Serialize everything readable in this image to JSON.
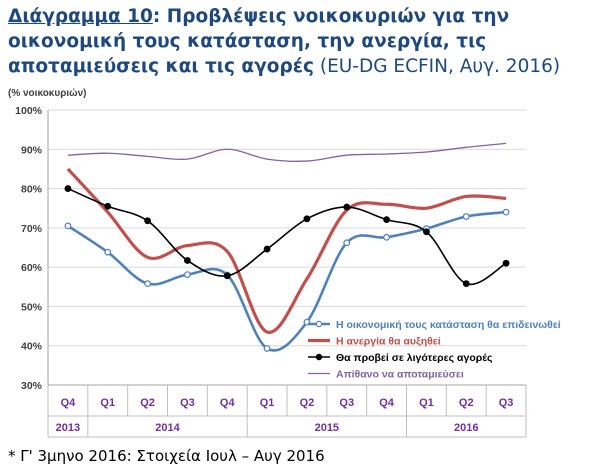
{
  "header": {
    "title_label": "Διάγραμμα 10",
    "title_text": ": Προβλέψεις νοικοκυριών για την οικονομική τους κατάσταση, την ανεργία, τις αποταμιεύσεις και τις αγορές",
    "title_source": " (EU-DG ECFIN, Αυγ. 2016)"
  },
  "footnote": "* Γ' 3μηνο 2016: Στοιχεία Ιουλ – Αυγ 2016",
  "chart_data": {
    "type": "line",
    "ylabel": "(% νοικοκυριών)",
    "ylim": [
      30,
      100
    ],
    "yticks": [
      30,
      40,
      50,
      60,
      70,
      80,
      90,
      100
    ],
    "ytick_labels": [
      "30%",
      "40%",
      "50%",
      "60%",
      "70%",
      "80%",
      "90%",
      "100%"
    ],
    "categories": [
      "Q4",
      "Q1",
      "Q2",
      "Q3",
      "Q4",
      "Q1",
      "Q2",
      "Q3",
      "Q4",
      "Q1",
      "Q2",
      "Q3"
    ],
    "groups": [
      {
        "label": "2013",
        "span": 1
      },
      {
        "label": "2014",
        "span": 4
      },
      {
        "label": "2015",
        "span": 4
      },
      {
        "label": "2016",
        "span": 3
      }
    ],
    "grid": true,
    "legend_position": "bottom-right",
    "series": [
      {
        "name": "Η οικονομική τους κατάσταση θα επιδεινωθεί",
        "color": "#4f81bd",
        "marker": "open-circle",
        "values": [
          70.5,
          63.8,
          55.8,
          58.1,
          58.0,
          39.3,
          46.0,
          66.2,
          67.6,
          69.8,
          72.9,
          74.0
        ]
      },
      {
        "name": "Η ανεργία θα αυξηθεί",
        "color": "#c0504d",
        "marker": "none",
        "values": [
          85.0,
          74.0,
          62.5,
          65.5,
          64.0,
          43.5,
          57.0,
          74.5,
          76.0,
          75.0,
          78.0,
          77.5
        ]
      },
      {
        "name": "Θα προβεί σε λιγότερες αγορές",
        "color": "#000000",
        "marker": "filled-circle",
        "values": [
          80.0,
          75.5,
          71.8,
          61.7,
          57.8,
          64.6,
          72.3,
          75.3,
          72.1,
          69.0,
          55.8,
          61.0
        ]
      },
      {
        "name": "Απίθανο να αποταμιεύσει",
        "color": "#8064a2",
        "marker": "none",
        "values": [
          88.5,
          89.0,
          88.2,
          87.5,
          90.0,
          87.5,
          87.0,
          88.5,
          88.8,
          89.3,
          90.5,
          91.5
        ]
      }
    ]
  }
}
